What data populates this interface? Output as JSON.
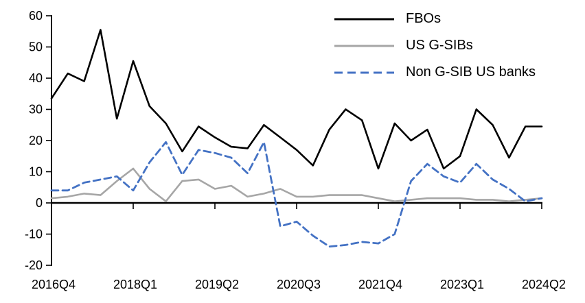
{
  "page": {
    "background_color": "#FFFFFF"
  },
  "chart_data": {
    "type": "line",
    "title": "",
    "xlabel": "",
    "ylabel": "",
    "ylim": [
      -20,
      60
    ],
    "grid": false,
    "legend_position": "top-right",
    "points_per_series": 31,
    "xtick_labels": [
      "2016Q4",
      "2018Q1",
      "2019Q2",
      "2020Q3",
      "2021Q4",
      "2023Q1",
      "2024Q2"
    ],
    "xtick_positions": [
      0,
      5,
      10,
      15,
      20,
      25,
      30
    ],
    "ytick_labels_top_to_bottom": [
      "60",
      "50",
      "40",
      "30",
      "20",
      "10",
      "0",
      "-10",
      "-20"
    ],
    "ytick_values": [
      60,
      50,
      40,
      30,
      20,
      10,
      0,
      -10,
      -20
    ],
    "axis_color": "#000000",
    "series": [
      {
        "name": "FBOs",
        "color": "#000000",
        "style": "solid",
        "width": 2.6,
        "values": [
          33.5,
          41.5,
          39,
          55.5,
          27,
          45.5,
          31,
          25.5,
          16.5,
          24.5,
          21,
          18,
          17.5,
          25,
          21,
          17,
          12,
          23.5,
          30,
          26.5,
          11,
          25.5,
          20,
          23.5,
          11,
          15,
          30,
          25,
          14.5,
          24.5,
          24.5
        ]
      },
      {
        "name": "US G-SIBs",
        "color": "#A6A6A6",
        "style": "solid",
        "width": 2.6,
        "values": [
          1.5,
          2,
          3,
          2.5,
          7,
          11,
          4.5,
          0.5,
          7,
          7.5,
          4.5,
          5.5,
          2,
          3,
          4.5,
          2,
          2,
          2.5,
          2.5,
          2.5,
          1.5,
          0.5,
          1,
          1.5,
          1.5,
          1.5,
          1,
          1,
          0.5,
          1,
          1.5
        ]
      },
      {
        "name": "Non G-SIB US banks",
        "color": "#4472C4",
        "style": "dashed",
        "width": 2.8,
        "values": [
          4,
          4,
          6.5,
          7.5,
          8.5,
          4,
          13,
          19.5,
          9,
          17,
          16,
          14.5,
          9.5,
          19.5,
          -7.5,
          -6,
          -10.5,
          -14,
          -13.5,
          -12.5,
          -13,
          -10,
          7,
          12.5,
          8.5,
          6.5,
          12.5,
          7.5,
          4.5,
          0.5,
          1.5
        ]
      }
    ]
  }
}
